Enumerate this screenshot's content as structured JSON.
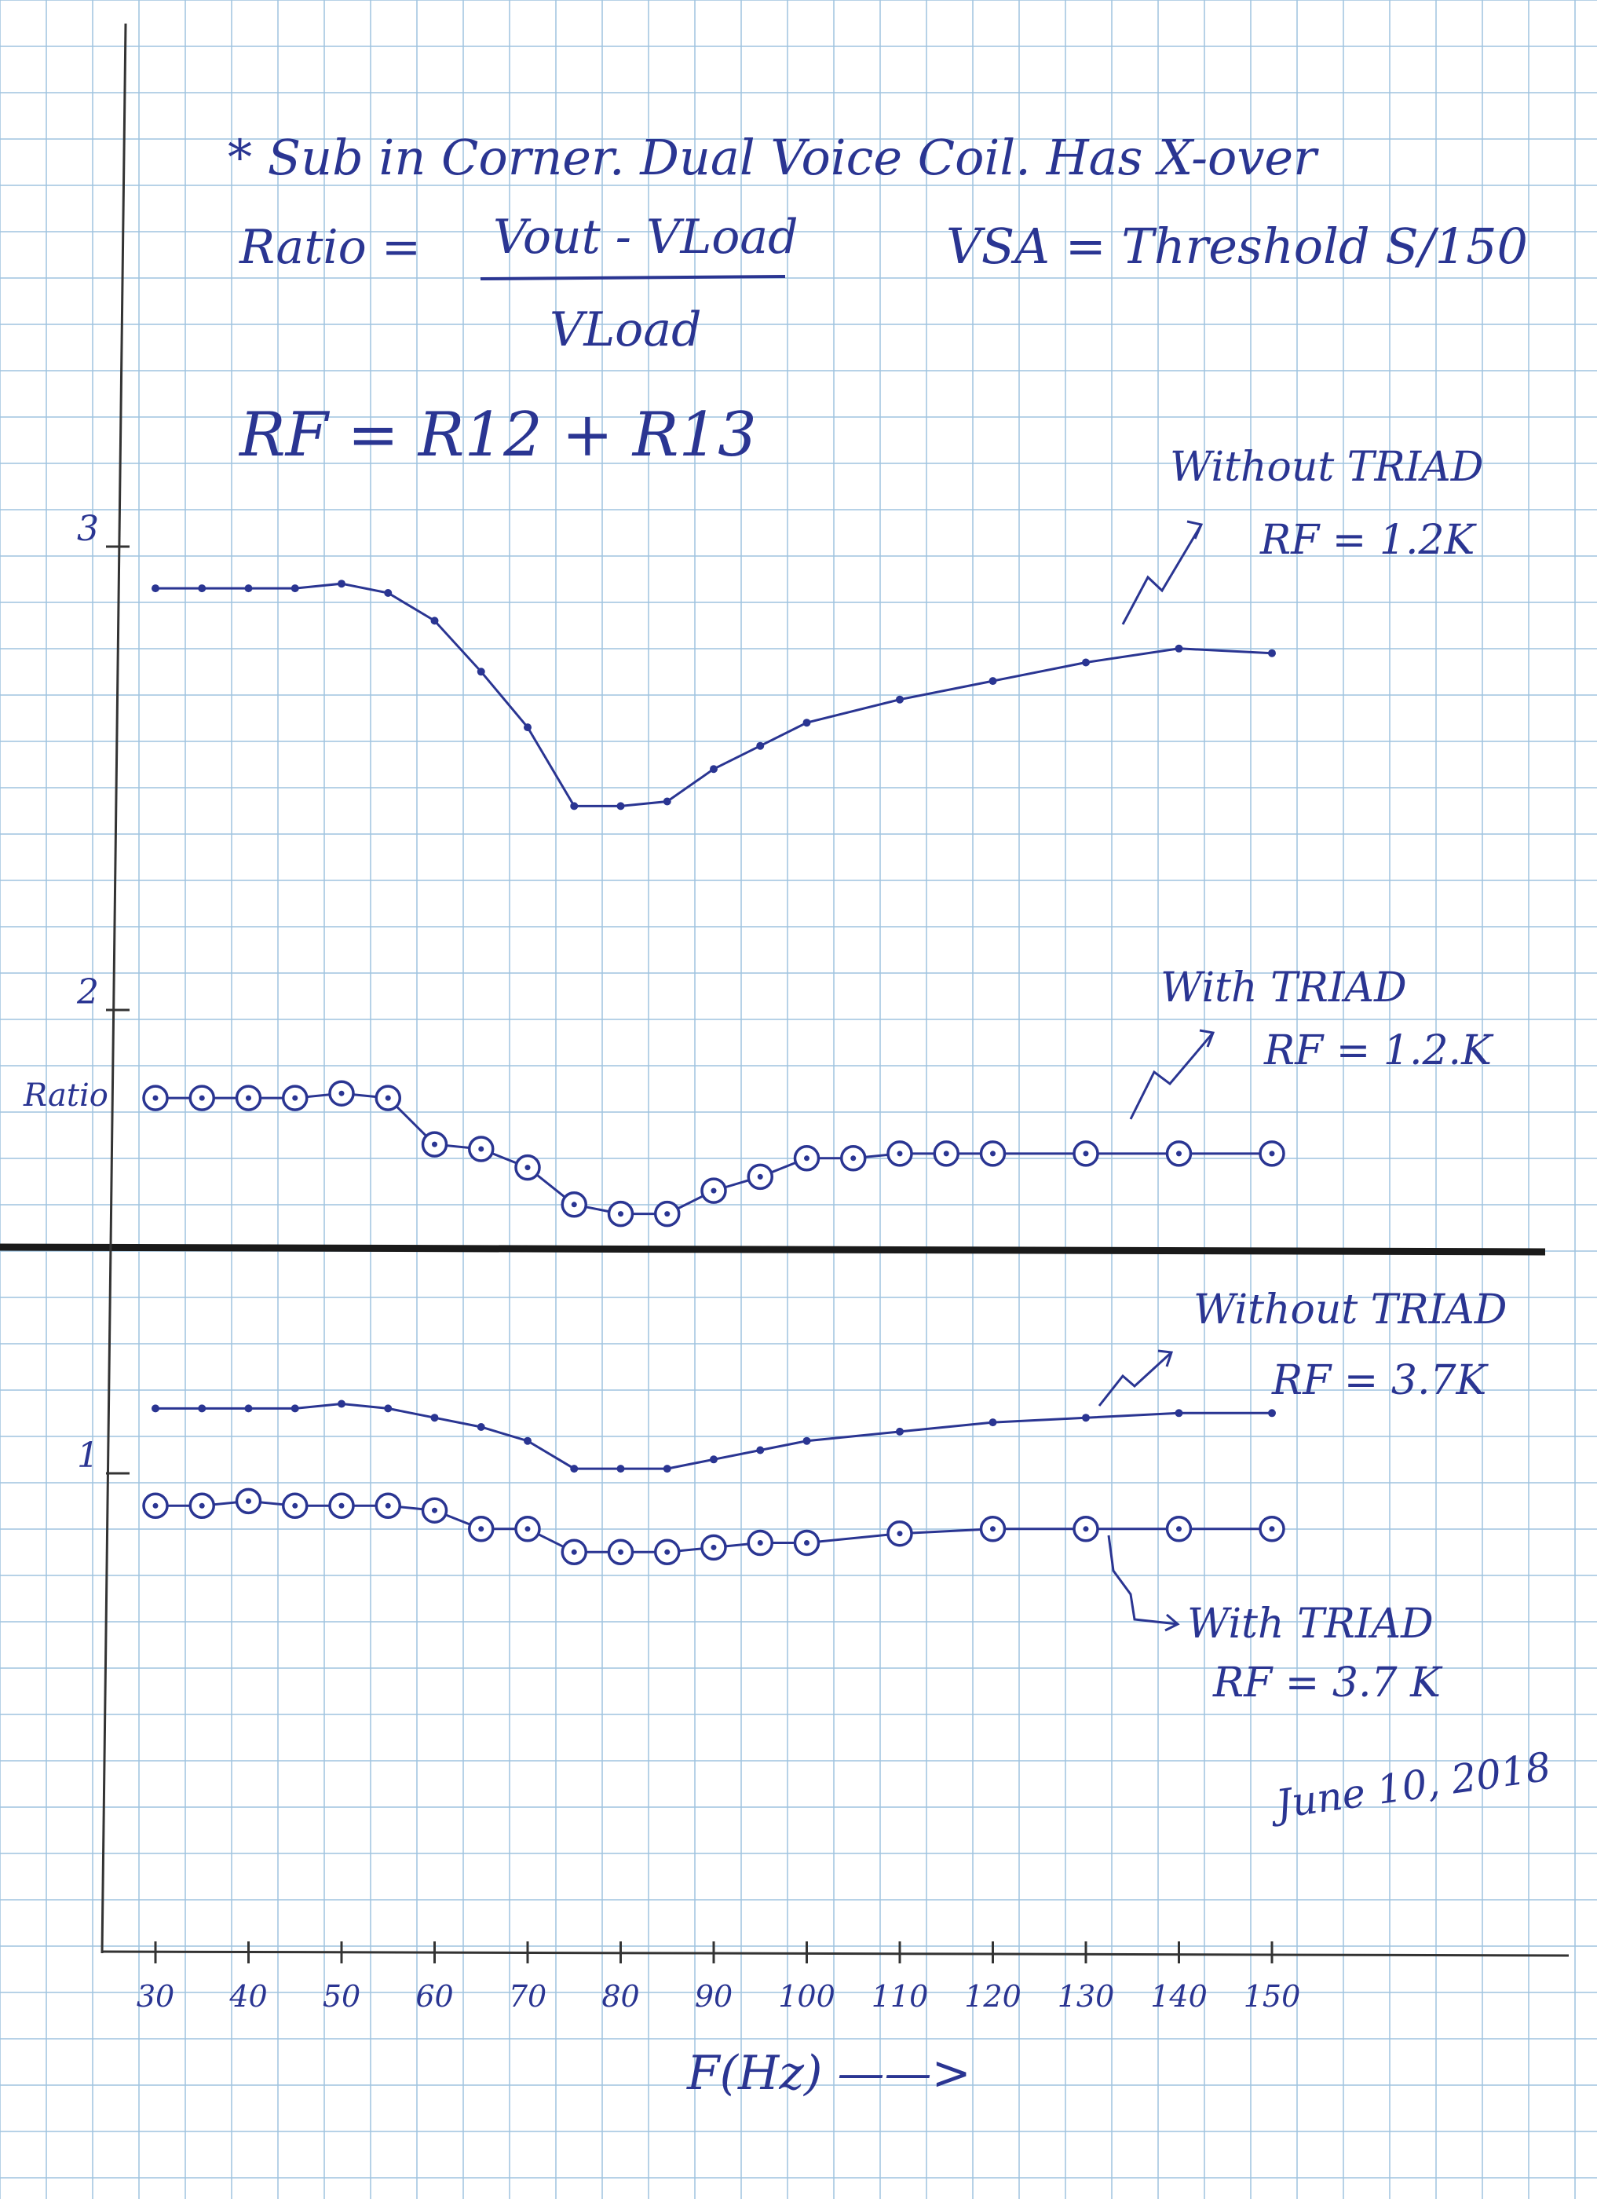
{
  "notes": {
    "header": "* Sub in Corner. Dual Voice Coil. Has X-over",
    "ratio_lhs": "Ratio =",
    "ratio_num": "Vout - VLoad",
    "ratio_den": "VLoad",
    "vsa": "VSA = Threshold S/150",
    "rf": "RF = R12 + R13",
    "date": "June 10, 2018"
  },
  "colors": {
    "ink": "#2a3592",
    "axis": "#333333",
    "grid": "#9fc3df",
    "divider": "#1a1a1a"
  },
  "chart_data": {
    "type": "line",
    "xlabel": "F(Hz) ——>",
    "ylabel": "Ratio",
    "x": [
      30,
      35,
      40,
      45,
      50,
      55,
      60,
      65,
      70,
      75,
      80,
      85,
      90,
      95,
      100,
      105,
      110,
      115,
      120,
      130,
      140,
      150
    ],
    "x_ticks": [
      "30",
      "40",
      "50",
      "60",
      "70",
      "80",
      "90",
      "100",
      "110",
      "120",
      "130",
      "140",
      "150"
    ],
    "y_ticks": [
      "3",
      "2",
      "1"
    ],
    "xlim": [
      30,
      150
    ],
    "grid": true,
    "series": [
      {
        "name": "Without TRIAD RF = 1.2K",
        "marker": "dot",
        "x": [
          30,
          35,
          40,
          45,
          50,
          55,
          60,
          65,
          70,
          75,
          80,
          85,
          90,
          95,
          100,
          110,
          120,
          130,
          140,
          150
        ],
        "y": [
          2.91,
          2.91,
          2.91,
          2.91,
          2.92,
          2.9,
          2.84,
          2.73,
          2.61,
          2.44,
          2.44,
          2.45,
          2.52,
          2.57,
          2.62,
          2.67,
          2.71,
          2.75,
          2.78,
          2.77
        ]
      },
      {
        "name": "With TRIAD RF = 1.2.K",
        "marker": "circle",
        "x": [
          30,
          35,
          40,
          45,
          50,
          55,
          60,
          65,
          70,
          75,
          80,
          85,
          90,
          95,
          100,
          105,
          110,
          115,
          120,
          130,
          140,
          150
        ],
        "y": [
          1.81,
          1.81,
          1.81,
          1.81,
          1.82,
          1.81,
          1.71,
          1.7,
          1.66,
          1.58,
          1.56,
          1.56,
          1.61,
          1.64,
          1.68,
          1.68,
          1.69,
          1.69,
          1.69,
          1.69,
          1.69,
          1.69
        ]
      },
      {
        "name": "Without TRIAD RF = 3.7K",
        "marker": "dot",
        "x": [
          30,
          35,
          40,
          45,
          50,
          55,
          60,
          65,
          70,
          75,
          80,
          85,
          90,
          95,
          100,
          110,
          120,
          130,
          140,
          150
        ],
        "y": [
          1.14,
          1.14,
          1.14,
          1.14,
          1.15,
          1.14,
          1.12,
          1.1,
          1.07,
          1.01,
          1.01,
          1.01,
          1.03,
          1.05,
          1.07,
          1.09,
          1.11,
          1.12,
          1.13,
          1.13
        ]
      },
      {
        "name": "With TRIAD RF = 3.7 K",
        "marker": "circle",
        "x": [
          30,
          35,
          40,
          45,
          50,
          55,
          60,
          65,
          70,
          75,
          80,
          85,
          90,
          95,
          100,
          110,
          120,
          130,
          140,
          150
        ],
        "y": [
          0.93,
          0.93,
          0.94,
          0.93,
          0.93,
          0.93,
          0.92,
          0.88,
          0.88,
          0.83,
          0.83,
          0.83,
          0.84,
          0.85,
          0.85,
          0.87,
          0.88,
          0.88,
          0.88,
          0.88
        ]
      }
    ],
    "annotations": [
      {
        "title": "Without TRIAD",
        "rf": "RF = 1.2K"
      },
      {
        "title": "With TRIAD",
        "rf": "RF = 1.2.K"
      },
      {
        "title": "Without TRIAD",
        "rf": "RF = 3.7K"
      },
      {
        "title": "With TRIAD",
        "rf": "RF = 3.7 K"
      }
    ]
  }
}
